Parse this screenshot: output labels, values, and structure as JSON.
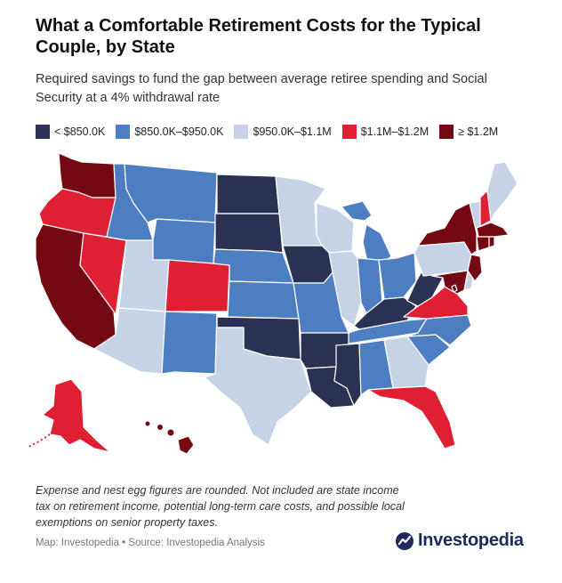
{
  "title": "What a Comfortable Retirement Costs for the Typical Couple, by State",
  "subtitle": "Required savings to fund the gap between average retiree spending and Social Security at a 4% withdrawal rate",
  "legend": [
    {
      "label": "< $850.0K",
      "color": "#2b3152"
    },
    {
      "label": "$850.0K–$950.0K",
      "color": "#4d7ec2"
    },
    {
      "label": "$950.0K–$1.1M",
      "color": "#c6d3e6"
    },
    {
      "label": "$1.1M–$1.2M",
      "color": "#de2032"
    },
    {
      "label": "≥ $1.2M",
      "color": "#740913"
    }
  ],
  "note": "Expense and nest egg figures are rounded. Not included are state income tax on retirement income, potential long-term care costs, and possible local exemptions on senior property taxes.",
  "source": "Map: Investopedia • Source: Investopedia Analysis",
  "logo": {
    "text": "Investopedia",
    "icon": "investopedia-logo-icon"
  }
}
